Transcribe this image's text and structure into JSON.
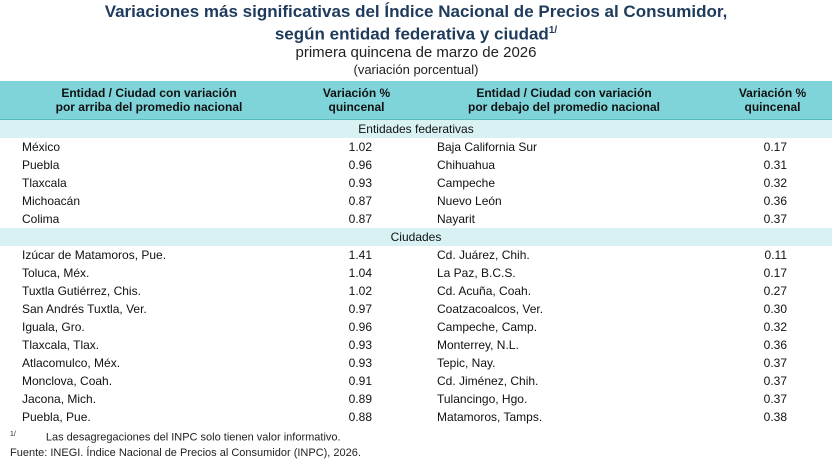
{
  "header": {
    "title_line1": "Variaciones más significativas del Índice Nacional de Precios al Consumidor,",
    "title_line2": "según entidad federativa y ciudad",
    "title_note": "1/",
    "subtitle": "primera quincena de marzo de 2026",
    "unit": "(variación porcentual)"
  },
  "table": {
    "columns": [
      [
        "Entidad / Ciudad con variación",
        "por arriba del promedio nacional"
      ],
      [
        "Variación %",
        "quincenal"
      ],
      [
        "Entidad / Ciudad con variación",
        "por debajo del promedio nacional"
      ],
      [
        "Variación %",
        "quincenal"
      ]
    ],
    "sections": [
      {
        "label": "Entidades federativas",
        "rows": [
          [
            "México",
            "1.02",
            "Baja California Sur",
            "0.17"
          ],
          [
            "Puebla",
            "0.96",
            "Chihuahua",
            "0.31"
          ],
          [
            "Tlaxcala",
            "0.93",
            "Campeche",
            "0.32"
          ],
          [
            "Michoacán",
            "0.87",
            "Nuevo León",
            "0.36"
          ],
          [
            "Colima",
            "0.87",
            "Nayarit",
            "0.37"
          ]
        ]
      },
      {
        "label": "Ciudades",
        "rows": [
          [
            "Izúcar de Matamoros, Pue.",
            "1.41",
            "Cd. Juárez, Chih.",
            "0.11"
          ],
          [
            "Toluca, Méx.",
            "1.04",
            "La Paz, B.C.S.",
            "0.17"
          ],
          [
            "Tuxtla Gutiérrez, Chis.",
            "1.02",
            "Cd. Acuña, Coah.",
            "0.27"
          ],
          [
            "San Andrés Tuxtla, Ver.",
            "0.97",
            "Coatzacoalcos, Ver.",
            "0.30"
          ],
          [
            "Iguala, Gro.",
            "0.96",
            "Campeche, Camp.",
            "0.32"
          ],
          [
            "Tlaxcala, Tlax.",
            "0.93",
            "Monterrey, N.L.",
            "0.36"
          ],
          [
            "Atlacomulco, Méx.",
            "0.93",
            "Tepic, Nay.",
            "0.37"
          ],
          [
            "Monclova, Coah.",
            "0.91",
            "Cd. Jiménez, Chih.",
            "0.37"
          ],
          [
            "Jacona, Mich.",
            "0.89",
            "Tulancingo, Hgo.",
            "0.37"
          ],
          [
            "Puebla, Pue.",
            "0.88",
            "Matamoros, Tamps.",
            "0.38"
          ]
        ]
      }
    ]
  },
  "footnotes": {
    "note_mark": "1/",
    "note": "Las desagregaciones del INPC solo tienen valor informativo.",
    "source": "Fuente: INEGI. Índice Nacional de Precios al Consumidor (INPC), 2026."
  }
}
